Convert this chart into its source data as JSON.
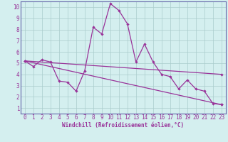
{
  "xlabel": "Windchill (Refroidissement éolien,°C)",
  "bg_color": "#d4efef",
  "grid_color": "#aacccc",
  "line_color": "#993399",
  "spine_color": "#6666aa",
  "xlim": [
    -0.5,
    23.5
  ],
  "ylim": [
    0.5,
    10.5
  ],
  "xticks": [
    0,
    1,
    2,
    3,
    4,
    5,
    6,
    7,
    8,
    9,
    10,
    11,
    12,
    13,
    14,
    15,
    16,
    17,
    18,
    19,
    20,
    21,
    22,
    23
  ],
  "yticks": [
    1,
    2,
    3,
    4,
    5,
    6,
    7,
    8,
    9,
    10
  ],
  "line1_x": [
    0,
    1,
    2,
    3,
    4,
    5,
    6,
    7,
    8,
    9,
    10,
    11,
    12,
    13,
    14,
    15,
    16,
    17,
    18,
    19,
    20,
    21,
    22,
    23
  ],
  "line1_y": [
    5.2,
    4.7,
    5.3,
    5.1,
    3.4,
    3.3,
    2.5,
    4.3,
    8.2,
    7.6,
    10.3,
    9.7,
    8.5,
    5.1,
    6.7,
    5.1,
    4.0,
    3.8,
    2.7,
    3.5,
    2.7,
    2.5,
    1.4,
    1.3
  ],
  "line2_x": [
    0,
    23
  ],
  "line2_y": [
    5.2,
    4.0
  ],
  "line3_x": [
    0,
    23
  ],
  "line3_y": [
    5.2,
    1.3
  ],
  "tick_fontsize": 5.5,
  "xlabel_fontsize": 5.5
}
